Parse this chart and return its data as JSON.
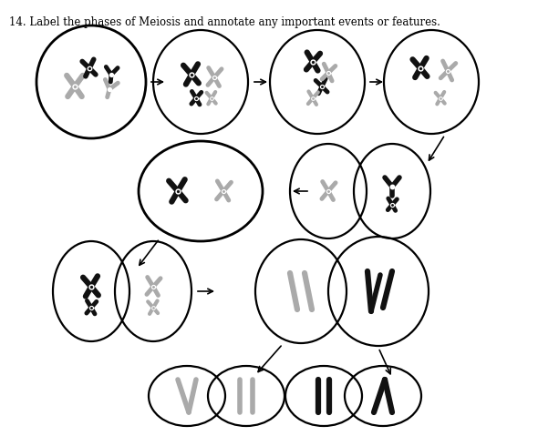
{
  "title": "14. Label the phases of Meiosis and annotate any important events or features.",
  "bg_color": "#ffffff",
  "chrom_dark": "#111111",
  "chrom_gray": "#aaaaaa",
  "circle_lw": 1.6
}
